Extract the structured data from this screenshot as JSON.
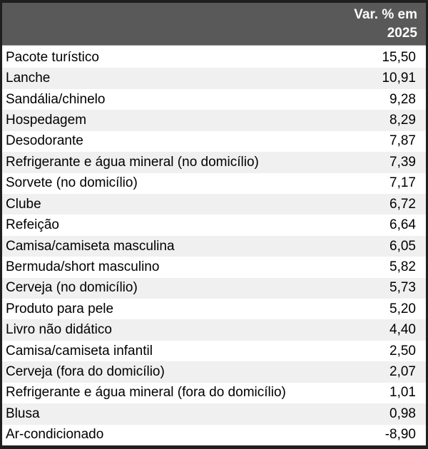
{
  "colors": {
    "header_bg": "#595959",
    "header_text": "#ffffff",
    "row_band": "#f0f0f0",
    "row_bg": "#ffffff",
    "border": "#1f1f1f",
    "text": "#000000"
  },
  "table": {
    "header": {
      "text": "Var. % em 2025",
      "lines": [
        "Var. % em",
        "2025"
      ]
    },
    "rows": [
      {
        "label": "Pacote turístico",
        "value": "15,50"
      },
      {
        "label": "Lanche",
        "value": "10,91"
      },
      {
        "label": "Sandália/chinelo",
        "value": "9,28"
      },
      {
        "label": "Hospedagem",
        "value": "8,29"
      },
      {
        "label": "Desodorante",
        "value": "7,87"
      },
      {
        "label": "Refrigerante e água mineral (no domicílio)",
        "value": "7,39"
      },
      {
        "label": "Sorvete (no domicílio)",
        "value": "7,17"
      },
      {
        "label": "Clube",
        "value": "6,72"
      },
      {
        "label": "Refeição",
        "value": "6,64"
      },
      {
        "label": "Camisa/camiseta masculina",
        "value": "6,05"
      },
      {
        "label": "Bermuda/short masculino",
        "value": "5,82"
      },
      {
        "label": "Cerveja (no domicílio)",
        "value": "5,73"
      },
      {
        "label": "Produto para pele",
        "value": "5,20"
      },
      {
        "label": "Livro não didático",
        "value": "4,40"
      },
      {
        "label": "Camisa/camiseta infantil",
        "value": "2,50"
      },
      {
        "label": "Cerveja (fora do domicílio)",
        "value": "2,07"
      },
      {
        "label": "Refrigerante e água mineral (fora do domicílio)",
        "value": "1,01"
      },
      {
        "label": "Blusa",
        "value": "0,98"
      },
      {
        "label": "Ar-condicionado",
        "value": "-8,90"
      }
    ]
  },
  "chart_data": {
    "type": "table",
    "title": "Var. % em 2025",
    "categories": [
      "Pacote turístico",
      "Lanche",
      "Sandália/chinelo",
      "Hospedagem",
      "Desodorante",
      "Refrigerante e água mineral (no domicílio)",
      "Sorvete (no domicílio)",
      "Clube",
      "Refeição",
      "Camisa/camiseta masculina",
      "Bermuda/short masculino",
      "Cerveja (no domicílio)",
      "Produto para pele",
      "Livro não didático",
      "Camisa/camiseta infantil",
      "Cerveja (fora do domicílio)",
      "Refrigerante e água mineral (fora do domicílio)",
      "Blusa",
      "Ar-condicionado"
    ],
    "values": [
      15.5,
      10.91,
      9.28,
      8.29,
      7.87,
      7.39,
      7.17,
      6.72,
      6.64,
      6.05,
      5.82,
      5.73,
      5.2,
      4.4,
      2.5,
      2.07,
      1.01,
      0.98,
      -8.9
    ],
    "layout": {
      "banding": "even-rows-shaded",
      "value_alignment": "right",
      "decimal_separator": ","
    }
  }
}
